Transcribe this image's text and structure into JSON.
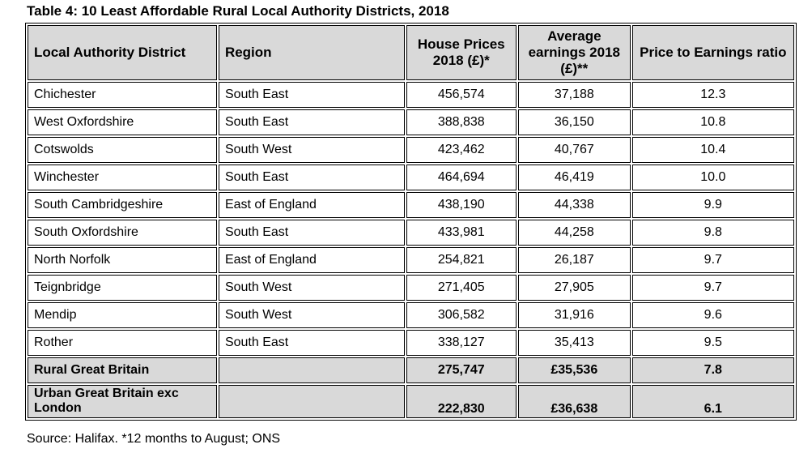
{
  "title": "Table 4: 10 Least Affordable Rural Local Authority Districts, 2018",
  "headers": {
    "district": "Local Authority District",
    "region": "Region",
    "house_prices": "House Prices 2018 (£)*",
    "earnings": "Average earnings 2018 (£)**",
    "ratio": "Price to Earnings ratio"
  },
  "rows": [
    {
      "district": "Chichester",
      "region": "South East",
      "house_price": "456,574",
      "earnings": "37,188",
      "ratio": "12.3"
    },
    {
      "district": "West Oxfordshire",
      "region": "South East",
      "house_price": "388,838",
      "earnings": "36,150",
      "ratio": "10.8"
    },
    {
      "district": "Cotswolds",
      "region": "South West",
      "house_price": "423,462",
      "earnings": "40,767",
      "ratio": "10.4"
    },
    {
      "district": "Winchester",
      "region": "South East",
      "house_price": "464,694",
      "earnings": "46,419",
      "ratio": "10.0"
    },
    {
      "district": "South Cambridgeshire",
      "region": "East of England",
      "house_price": "438,190",
      "earnings": "44,338",
      "ratio": "9.9"
    },
    {
      "district": "South Oxfordshire",
      "region": "South East",
      "house_price": "433,981",
      "earnings": "44,258",
      "ratio": "9.8"
    },
    {
      "district": "North Norfolk",
      "region": "East of England",
      "house_price": "254,821",
      "earnings": "26,187",
      "ratio": "9.7"
    },
    {
      "district": "Teignbridge",
      "region": "South West",
      "house_price": "271,405",
      "earnings": "27,905",
      "ratio": "9.7"
    },
    {
      "district": "Mendip",
      "region": "South West",
      "house_price": "306,582",
      "earnings": "31,916",
      "ratio": "9.6"
    },
    {
      "district": "Rother",
      "region": "South East",
      "house_price": "338,127",
      "earnings": "35,413",
      "ratio": "9.5"
    }
  ],
  "totals": [
    {
      "district": "Rural Great Britain",
      "region": "",
      "house_price": "275,747",
      "earnings": "£35,536",
      "ratio": "7.8"
    },
    {
      "district": "Urban Great Britain exc London",
      "region": "",
      "house_price": "222,830",
      "earnings": "£36,638",
      "ratio": "6.1"
    }
  ],
  "source": "Source: Halifax. *12 months to August; ONS",
  "colors": {
    "header_bg": "#d9d9d9",
    "total_bg": "#d9d9d9",
    "border": "#000000"
  }
}
